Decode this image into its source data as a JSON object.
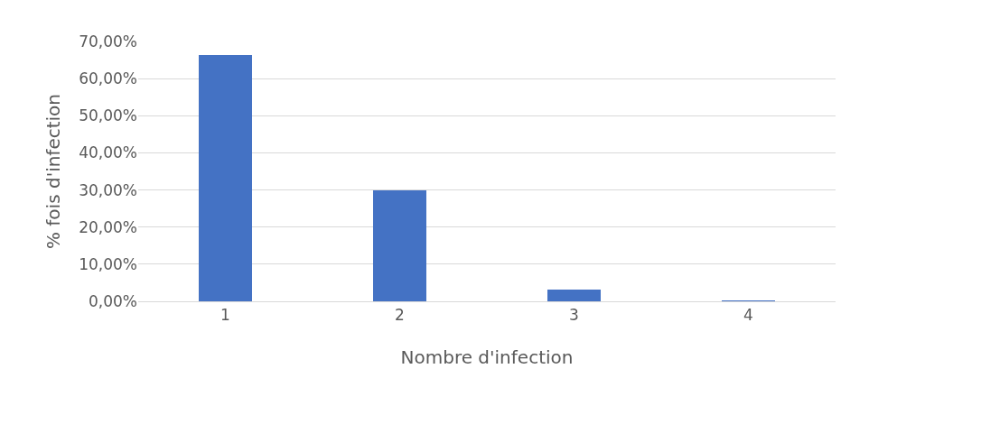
{
  "chart_data": {
    "type": "bar",
    "xlabel": "Nombre d'infection",
    "ylabel": "% fois d'infection",
    "categories": [
      "1",
      "2",
      "3",
      "4"
    ],
    "values": [
      66.4,
      30.0,
      3.1,
      0.2
    ],
    "color": "#4472c4",
    "ylim": [
      0,
      70
    ],
    "yticks": [
      {
        "value": 0,
        "label": "0,00%"
      },
      {
        "value": 10,
        "label": "10,00%"
      },
      {
        "value": 20,
        "label": "20,00%"
      },
      {
        "value": 30,
        "label": "30,00%"
      },
      {
        "value": 40,
        "label": "40,00%"
      },
      {
        "value": 50,
        "label": "50,00%"
      },
      {
        "value": 60,
        "label": "60,00%"
      },
      {
        "value": 70,
        "label": "70,00%"
      }
    ],
    "grid": "y"
  }
}
